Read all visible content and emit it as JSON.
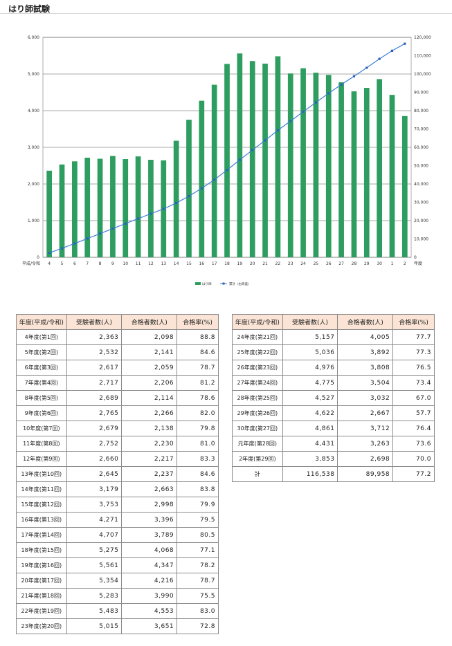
{
  "page": {
    "title": "はり師試験"
  },
  "chart_data": {
    "type": "bar+line",
    "categories": [
      "4",
      "5",
      "6",
      "7",
      "8",
      "9",
      "10",
      "11",
      "12",
      "13",
      "14",
      "15",
      "16",
      "17",
      "18",
      "19",
      "20",
      "21",
      "22",
      "23",
      "24",
      "25",
      "26",
      "27",
      "28",
      "29",
      "30",
      "1",
      "2"
    ],
    "series": [
      {
        "name": "はり師",
        "type": "bar",
        "axis": "left",
        "color": "#2e9e60",
        "values": [
          2363,
          2532,
          2617,
          2717,
          2689,
          2765,
          2679,
          2752,
          2660,
          2645,
          3179,
          3753,
          4271,
          4707,
          5275,
          5561,
          5354,
          5283,
          5483,
          5015,
          5157,
          5036,
          4976,
          4775,
          4527,
          4622,
          4861,
          4431,
          3853
        ]
      },
      {
        "name": "累計（右目盛）",
        "type": "line",
        "axis": "right",
        "color": "#3d7fd6",
        "values": [
          2363,
          4895,
          7512,
          10229,
          12918,
          15683,
          18362,
          21114,
          23774,
          26419,
          29598,
          33351,
          37622,
          42329,
          47604,
          53165,
          58519,
          63802,
          69285,
          74300,
          79457,
          84493,
          89469,
          94244,
          98771,
          103393,
          108254,
          112685,
          116538
        ]
      }
    ],
    "ylim_left": [
      0,
      6000
    ],
    "yticks_left": [
      "0",
      "1,000",
      "2,000",
      "3,000",
      "4,000",
      "5,000",
      "6,000"
    ],
    "ylim_right": [
      0,
      120000
    ],
    "yticks_right": [
      "0",
      "10,000",
      "20,000",
      "30,000",
      "40,000",
      "50,000",
      "60,000",
      "70,000",
      "80,000",
      "90,000",
      "100,000",
      "110,000",
      "120,000"
    ],
    "x_start_label": "平成/令和",
    "x_end_label": "年度",
    "grid": true,
    "legend_position": "bottom-center"
  },
  "table": {
    "headers": [
      "年度(平成/令和)",
      "受験者数(人)",
      "合格者数(人)",
      "合格率(%)"
    ],
    "left_rows": [
      [
        "4年度(第1回)",
        "2,363",
        "2,098",
        "88.8"
      ],
      [
        "5年度(第2回)",
        "2,532",
        "2,141",
        "84.6"
      ],
      [
        "6年度(第3回)",
        "2,617",
        "2,059",
        "78.7"
      ],
      [
        "7年度(第4回)",
        "2,717",
        "2,206",
        "81.2"
      ],
      [
        "8年度(第5回)",
        "2,689",
        "2,114",
        "78.6"
      ],
      [
        "9年度(第6回)",
        "2,765",
        "2,266",
        "82.0"
      ],
      [
        "10年度(第7回)",
        "2,679",
        "2,138",
        "79.8"
      ],
      [
        "11年度(第8回)",
        "2,752",
        "2,230",
        "81.0"
      ],
      [
        "12年度(第9回)",
        "2,660",
        "2,217",
        "83.3"
      ],
      [
        "13年度(第10回)",
        "2,645",
        "2,237",
        "84.6"
      ],
      [
        "14年度(第11回)",
        "3,179",
        "2,663",
        "83.8"
      ],
      [
        "15年度(第12回)",
        "3,753",
        "2,998",
        "79.9"
      ],
      [
        "16年度(第13回)",
        "4,271",
        "3,396",
        "79.5"
      ],
      [
        "17年度(第14回)",
        "4,707",
        "3,789",
        "80.5"
      ],
      [
        "18年度(第15回)",
        "5,275",
        "4,068",
        "77.1"
      ],
      [
        "19年度(第16回)",
        "5,561",
        "4,347",
        "78.2"
      ],
      [
        "20年度(第17回)",
        "5,354",
        "4,216",
        "78.7"
      ],
      [
        "21年度(第18回)",
        "5,283",
        "3,990",
        "75.5"
      ],
      [
        "22年度(第19回)",
        "5,483",
        "4,553",
        "83.0"
      ],
      [
        "23年度(第20回)",
        "5,015",
        "3,651",
        "72.8"
      ]
    ],
    "right_rows": [
      [
        "24年度(第21回)",
        "5,157",
        "4,005",
        "77.7"
      ],
      [
        "25年度(第22回)",
        "5,036",
        "3,892",
        "77.3"
      ],
      [
        "26年度(第23回)",
        "4,976",
        "3,808",
        "76.5"
      ],
      [
        "27年度(第24回)",
        "4,775",
        "3,504",
        "73.4"
      ],
      [
        "28年度(第25回)",
        "4,527",
        "3,032",
        "67.0"
      ],
      [
        "29年度(第26回)",
        "4,622",
        "2,667",
        "57.7"
      ],
      [
        "30年度(第27回)",
        "4,861",
        "3,712",
        "76.4"
      ],
      [
        "元年度(第28回)",
        "4,431",
        "3,263",
        "73.6"
      ],
      [
        "2年度(第29回)",
        "3,853",
        "2,698",
        "70.0"
      ],
      [
        "計",
        "116,538",
        "89,958",
        "77.2"
      ]
    ]
  }
}
